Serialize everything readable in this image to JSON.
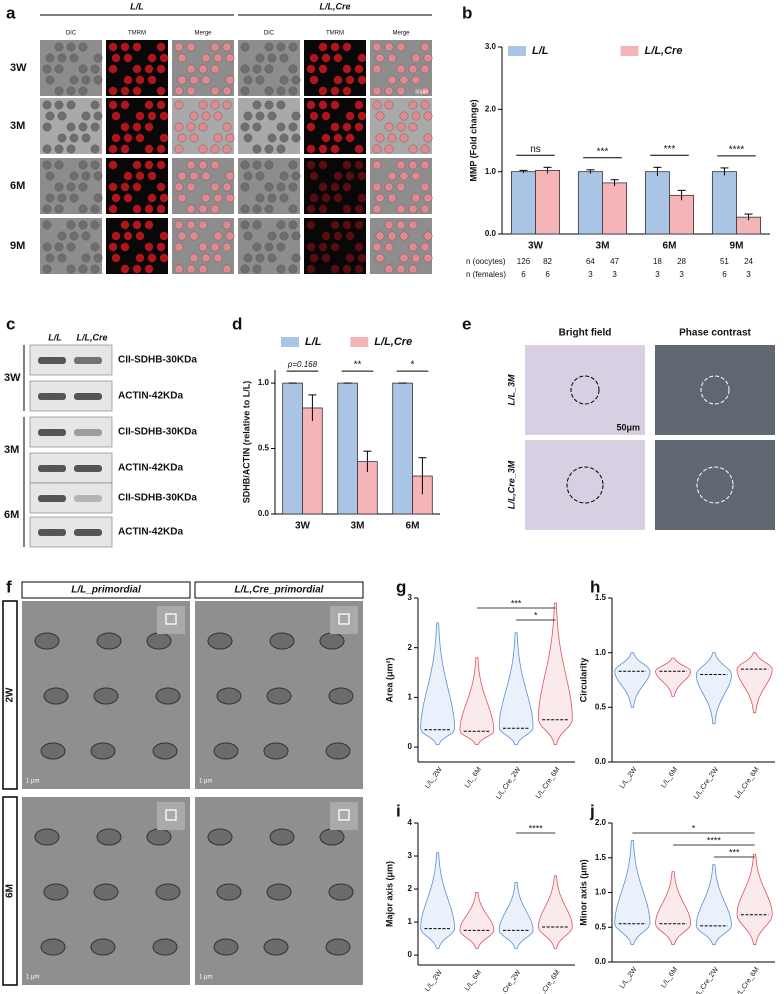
{
  "panel_labels": [
    "a",
    "b",
    "c",
    "d",
    "e",
    "f",
    "g",
    "h",
    "i",
    "j"
  ],
  "images_a": {
    "groups": [
      "L/L",
      "L/L,Cre"
    ],
    "columns": [
      "DIC",
      "TMRM",
      "Merge"
    ],
    "rows": [
      "3W",
      "3M",
      "6M",
      "9M"
    ],
    "scale_bar": "50μm"
  },
  "blots_c": {
    "lanes": [
      "L/L",
      "L/L,Cre"
    ],
    "groups": [
      "3W",
      "3M",
      "6M"
    ],
    "bands": [
      "CII-SDHB-30KDa",
      "ACTIN-42KDa"
    ]
  },
  "images_e": {
    "columns": [
      "Bright field",
      "Phase contrast"
    ],
    "rows": [
      "L/L_3M",
      "L/L,Cre_3M"
    ],
    "scale_bar": "50μm"
  },
  "images_f": {
    "columns": [
      "L/L_primordial",
      "L/L,Cre_primordial"
    ],
    "rows": [
      "2W",
      "6M"
    ],
    "scale_bar": "1 μm"
  },
  "chart_data": [
    {
      "type": "bar",
      "y_label": "MMP (Fold change)",
      "categories": [
        "3W",
        "3M",
        "6M",
        "9M"
      ],
      "series": [
        {
          "name": "L/L",
          "color": "#a9c4e4",
          "values": [
            1.0,
            1.0,
            1.0,
            1.0
          ],
          "errors": [
            0.02,
            0.03,
            0.07,
            0.06
          ]
        },
        {
          "name": "L/L,Cre",
          "color": "#f4b4b8",
          "values": [
            1.02,
            0.82,
            0.62,
            0.27
          ],
          "errors": [
            0.05,
            0.05,
            0.08,
            0.05
          ]
        }
      ],
      "annotations": [
        "ns",
        "***",
        "***",
        "****"
      ],
      "ylim": [
        0,
        3
      ],
      "yticks": [
        {
          "value": 0,
          "label": "0.0"
        },
        {
          "value": 1,
          "label": "1.0"
        },
        {
          "value": 2,
          "label": "2.0"
        },
        {
          "value": 3,
          "label": "3.0"
        }
      ],
      "legend": "top",
      "table": [
        {
          "label": "n (oocytes)",
          "values": [
            126,
            82,
            64,
            47,
            18,
            28,
            51,
            24
          ]
        },
        {
          "label": "n (females)",
          "values": [
            6,
            6,
            3,
            3,
            3,
            3,
            6,
            3
          ]
        }
      ]
    },
    {
      "type": "bar",
      "y_label": "SDHB/ACTIN (relative to L/L)",
      "categories": [
        "3W",
        "3M",
        "6M"
      ],
      "series": [
        {
          "name": "L/L",
          "color": "#a9c4e4",
          "values": [
            1.0,
            1.0,
            1.0
          ],
          "errors": [
            0,
            0,
            0
          ]
        },
        {
          "name": "L/L,Cre",
          "color": "#f4b4b8",
          "values": [
            0.81,
            0.4,
            0.29
          ],
          "errors": [
            0.1,
            0.08,
            0.14
          ]
        }
      ],
      "annotations": [
        "p=0.168",
        "**",
        "*"
      ],
      "ylim": [
        0,
        1.1
      ],
      "yticks": [
        {
          "value": 0,
          "label": "0.0"
        },
        {
          "value": 0.5,
          "label": "0.5"
        },
        {
          "value": 1,
          "label": "1.0"
        }
      ],
      "legend": "top"
    },
    {
      "type": "violin",
      "y_label": "Area (μm²)",
      "categories": [
        "L/L_2W",
        "L/L_6M",
        "L/L,Cre_2W",
        "L/L,Cre_6M"
      ],
      "colors": [
        "#5b8fd6",
        "#e0525c",
        "#5b8fd6",
        "#e0525c"
      ],
      "medians": [
        0.35,
        0.32,
        0.38,
        0.55
      ],
      "maxima": [
        2.5,
        1.8,
        2.3,
        2.9
      ],
      "minima": [
        0.05,
        0.05,
        0.05,
        0.05
      ],
      "ylim": [
        -0.3,
        3
      ],
      "yticks": [
        0,
        1,
        2,
        3
      ],
      "significance": [
        {
          "groups": [
            "L/L_6M",
            "L/L,Cre_6M"
          ],
          "label": "***"
        },
        {
          "groups": [
            "L/L,Cre_2W",
            "L/L,Cre_6M"
          ],
          "label": "*"
        }
      ]
    },
    {
      "type": "violin",
      "y_label": "Circularity",
      "categories": [
        "L/L_2W",
        "L/L_6M",
        "L/L,Cre_2W",
        "L/L,Cre_6M"
      ],
      "colors": [
        "#5b8fd6",
        "#e0525c",
        "#5b8fd6",
        "#e0525c"
      ],
      "medians": [
        0.83,
        0.83,
        0.8,
        0.85
      ],
      "maxima": [
        1.0,
        0.95,
        1.0,
        1.0
      ],
      "minima": [
        0.5,
        0.6,
        0.35,
        0.45
      ],
      "ylim": [
        0,
        1.5
      ],
      "yticks": [
        {
          "value": 0,
          "label": "0.0"
        },
        {
          "value": 0.5,
          "label": "0.5"
        },
        {
          "value": 1,
          "label": "1.0"
        },
        {
          "value": 1.5,
          "label": "1.5"
        }
      ],
      "significance": []
    },
    {
      "type": "violin",
      "y_label": "Major axis (μm)",
      "categories": [
        "L/L_2W",
        "L/L_6M",
        "L/L,Cre_2W",
        "L/L,Cre_6M"
      ],
      "colors": [
        "#5b8fd6",
        "#e0525c",
        "#5b8fd6",
        "#e0525c"
      ],
      "medians": [
        0.8,
        0.75,
        0.75,
        0.85
      ],
      "maxima": [
        3.1,
        1.9,
        2.2,
        2.4
      ],
      "minima": [
        0.2,
        0.2,
        0.2,
        0.2
      ],
      "ylim": [
        -0.3,
        4
      ],
      "yticks": [
        0,
        1,
        2,
        3,
        4
      ],
      "significance": [
        {
          "groups": [
            "L/L,Cre_2W",
            "L/L,Cre_6M"
          ],
          "label": "****"
        }
      ]
    },
    {
      "type": "violin",
      "y_label": "Minor axis (μm)",
      "categories": [
        "L/L_2W",
        "L/L_6M",
        "L/L,Cre_2W",
        "L/L,Cre_6M"
      ],
      "colors": [
        "#5b8fd6",
        "#e0525c",
        "#5b8fd6",
        "#e0525c"
      ],
      "medians": [
        0.55,
        0.55,
        0.52,
        0.68
      ],
      "maxima": [
        1.75,
        1.3,
        1.4,
        1.55
      ],
      "minima": [
        0.25,
        0.25,
        0.25,
        0.25
      ],
      "ylim": [
        0,
        2
      ],
      "yticks": [
        {
          "value": 0,
          "label": "0.0"
        },
        {
          "value": 0.5,
          "label": "0.5"
        },
        {
          "value": 1,
          "label": "1.0"
        },
        {
          "value": 1.5,
          "label": "1.5"
        },
        {
          "value": 2,
          "label": "2.0"
        }
      ],
      "significance": [
        {
          "groups": [
            "L/L_2W",
            "L/L,Cre_6M"
          ],
          "label": "*"
        },
        {
          "groups": [
            "L/L_6M",
            "L/L,Cre_6M"
          ],
          "label": "****"
        },
        {
          "groups": [
            "L/L,Cre_2W",
            "L/L,Cre_6M"
          ],
          "label": "***"
        }
      ]
    }
  ]
}
